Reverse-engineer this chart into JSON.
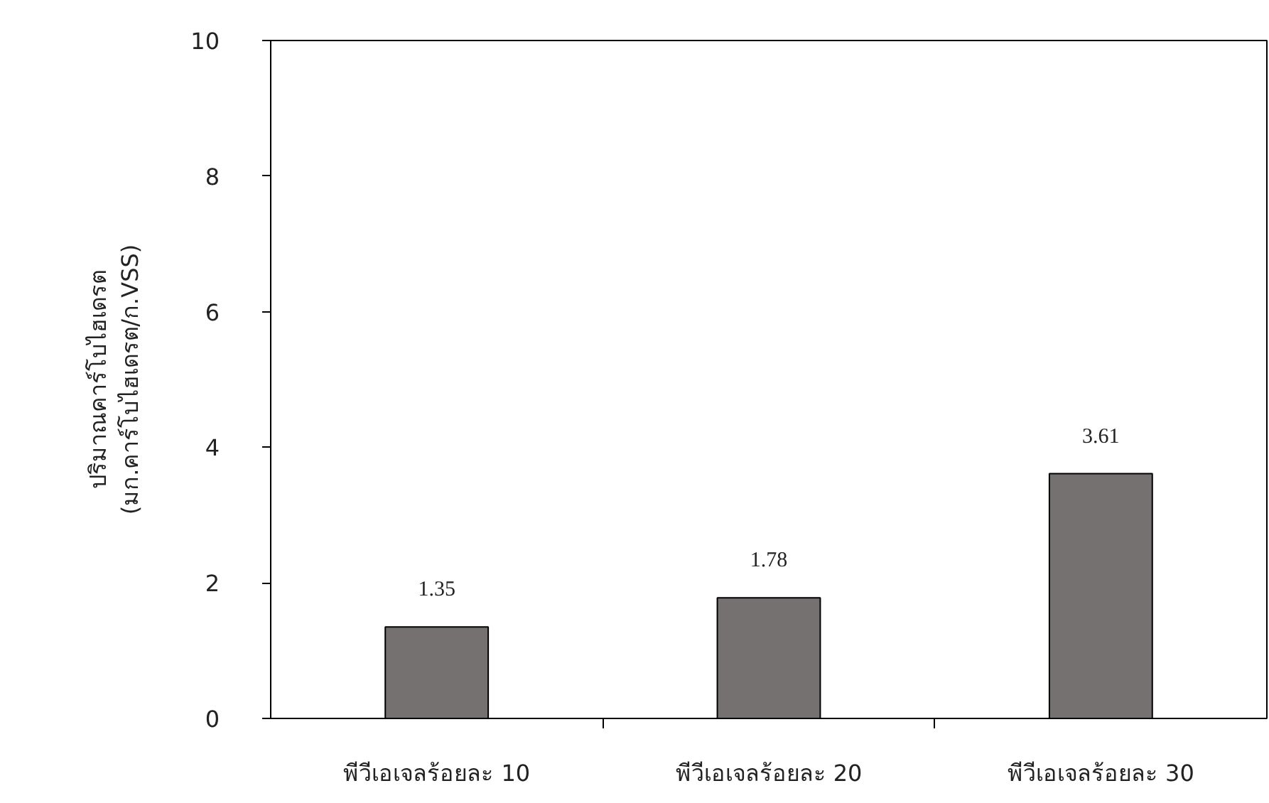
{
  "chart_data": {
    "type": "bar",
    "ylabel": "ปริมาณคาร์โบไฮเดรต\n(มก.คาร์โบไฮเดรต/ก.VSS)",
    "categories": [
      "พีวีเอเจลร้อยละ 10",
      "พีวีเอเจลร้อยละ 20",
      "พีวีเอเจลร้อยละ 30"
    ],
    "values": [
      1.35,
      1.78,
      3.61
    ],
    "color": "#767171",
    "ylim": [
      0,
      10
    ],
    "yticks": [
      0,
      2,
      4,
      6,
      8,
      10
    ],
    "grid": false,
    "data_labels": true
  }
}
